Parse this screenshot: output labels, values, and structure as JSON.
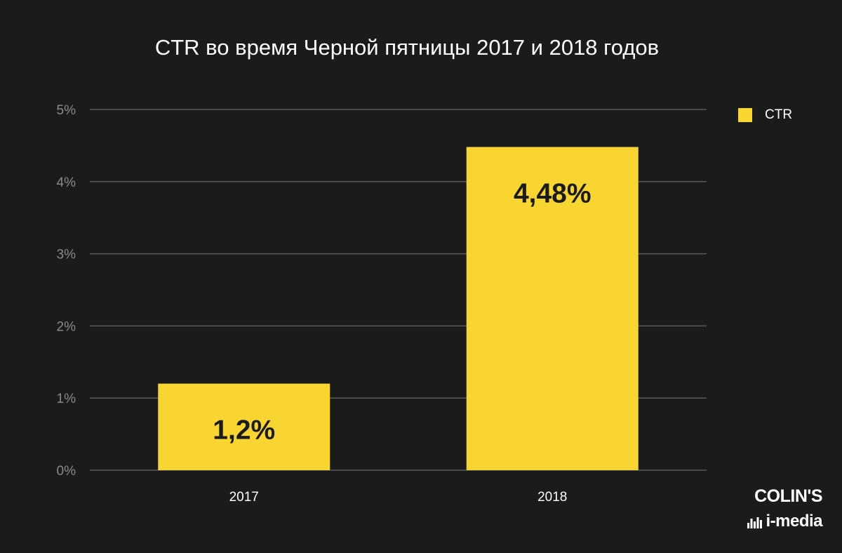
{
  "chart_data": {
    "type": "bar",
    "title": "CTR во время Черной пятницы 2017 и 2018 годов",
    "categories": [
      "2017",
      "2018"
    ],
    "series": [
      {
        "name": "CTR",
        "values": [
          1.2,
          4.48
        ],
        "color": "#f9d532",
        "data_labels": [
          "1,2%",
          "4,48%"
        ]
      }
    ],
    "yticks": [
      0,
      1,
      2,
      3,
      4,
      5
    ],
    "ytick_labels": [
      "0%",
      "1%",
      "2%",
      "3%",
      "4%",
      "5%"
    ],
    "ylim": [
      0,
      5
    ],
    "xlabel": "",
    "ylabel": "",
    "grid": true,
    "legend_position": "top-right"
  },
  "brand": {
    "name": "COLIN'S",
    "sub": "i-media",
    "mark": "bar-bars-icon"
  },
  "colors": {
    "background": "#1b1b1b",
    "grid": "#5a5a5a",
    "tick_label": "#8a8a8a",
    "axis_label": "#ffffff",
    "data_label": "#1b1b1b"
  }
}
